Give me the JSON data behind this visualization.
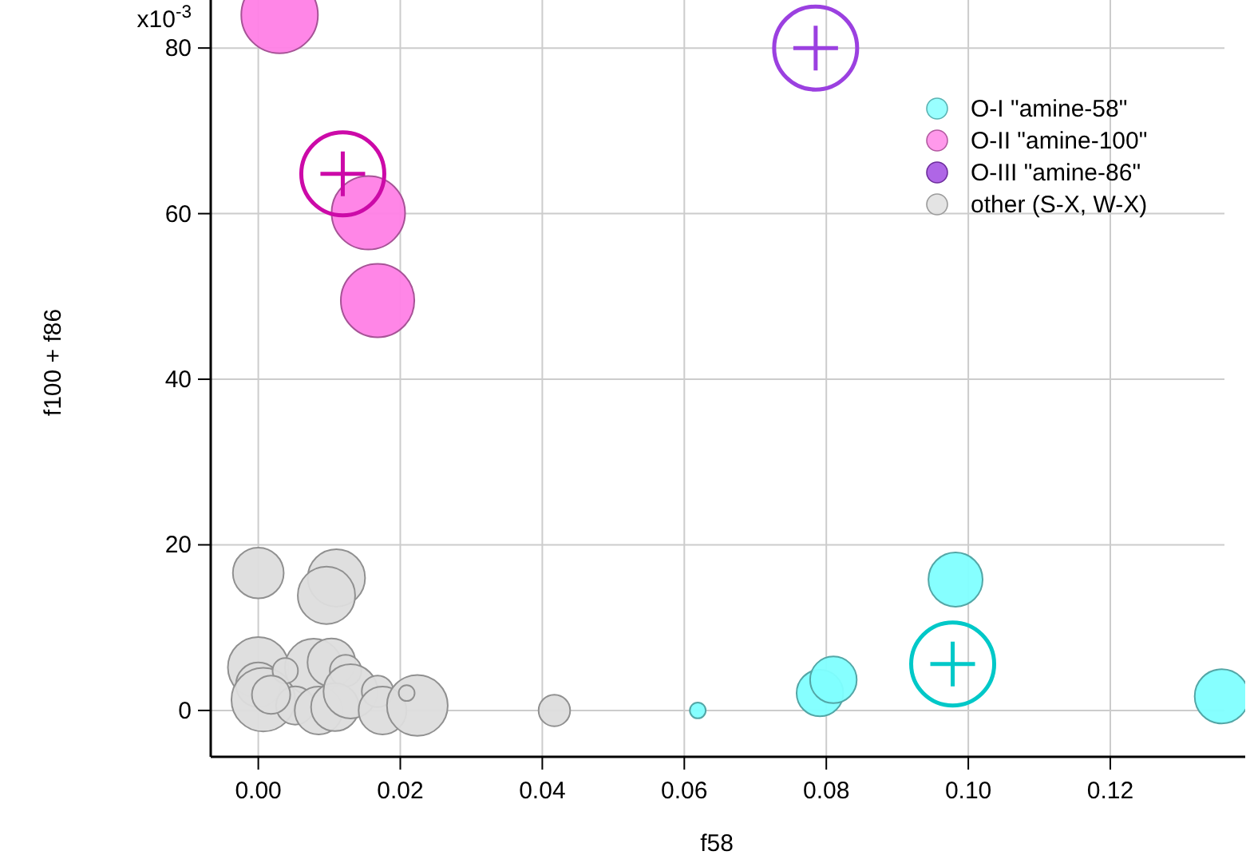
{
  "chart_data": {
    "type": "bubble",
    "xlabel": "f58",
    "ylabel": "f100 + f86",
    "xlim": [
      -0.0067,
      0.139
    ],
    "ylim": [
      -5.6,
      85.8
    ],
    "xticks": [
      {
        "value": 0,
        "label": "0.00"
      },
      {
        "value": 0.02,
        "label": "0.02"
      },
      {
        "value": 0.04,
        "label": "0.04"
      },
      {
        "value": 0.06,
        "label": "0.06"
      },
      {
        "value": 0.08,
        "label": "0.08"
      },
      {
        "value": 0.1,
        "label": "0.10"
      },
      {
        "value": 0.12,
        "label": "0.12"
      }
    ],
    "yticks": [
      0,
      20,
      40,
      60,
      80
    ],
    "annotations": [
      "x10$^{-3}$"
    ],
    "grid": true,
    "legend": "top right",
    "series": [
      {
        "name": "O-I \"amine-58\"",
        "color": "#80ffff",
        "x": [
          0.0619,
          0.0791,
          0.081,
          0.0982,
          0.1357
        ],
        "values": [
          0,
          2.1,
          3.7,
          15.8,
          1.7
        ],
        "sizes": [
          0.043,
          0.37,
          0.37,
          0.5,
          0.5
        ]
      },
      {
        "name": "O-II \"amine-100\"",
        "color": "#ff80e6",
        "x": [
          0.003,
          0.0155,
          0.0168
        ],
        "values": [
          84,
          60.1,
          49.5
        ],
        "sizes": [
          1,
          0.92,
          0.92
        ]
      },
      {
        "name": "O-III \"amine-86\"",
        "type": "scatter",
        "marker": "circle",
        "color": "#9b40e0",
        "x": [
          0.0785
        ],
        "values": [
          80
        ]
      },
      {
        "name": "other (S-X, W-X)",
        "color": "#dddddd",
        "x": [
          0,
          0.011,
          0.0096,
          0,
          0,
          0.0007,
          0.0078,
          0.0103,
          0.0123,
          0.0038,
          0.0052,
          0.0085,
          0.0108,
          0.013,
          0.0168,
          0.0175,
          0.0224,
          0.0209,
          0.0417,
          0.0018
        ],
        "values": [
          16.6,
          16,
          13.9,
          5.2,
          3.1,
          1.3,
          5.2,
          5.8,
          4.8,
          4.8,
          0.6,
          0,
          0.4,
          2.3,
          2.3,
          0,
          0.6,
          2.1,
          0,
          1.9
        ],
        "sizes": [
          0.44,
          0.56,
          0.56,
          0.63,
          0.34,
          0.69,
          0.56,
          0.39,
          0.17,
          0.11,
          0.25,
          0.39,
          0.39,
          0.5,
          0.17,
          0.39,
          0.63,
          0.043,
          0.17,
          0.25
        ]
      },
      {
        "type": "scatter",
        "marker": "circle",
        "color": "#00c8c8",
        "x": [
          0.0978
        ],
        "values": [
          5.6
        ]
      },
      {
        "type": "scatter",
        "marker": "circle",
        "color": "#cc0aa8",
        "x": [
          0.0119
        ],
        "values": [
          64.8
        ]
      }
    ]
  }
}
